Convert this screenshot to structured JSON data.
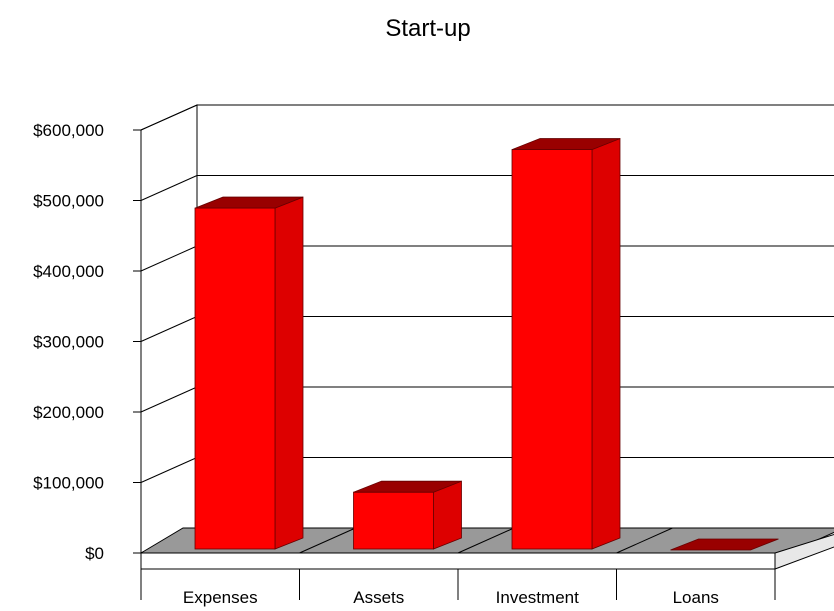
{
  "chart_data": {
    "type": "bar",
    "title": "Start-up",
    "xlabel": "",
    "ylabel": "",
    "categories": [
      "Expenses",
      "Assets",
      "Investment",
      "Loans"
    ],
    "series": [
      {
        "values": [
          485000,
          82000,
          568000,
          0
        ]
      }
    ],
    "ylim": [
      0,
      600000
    ],
    "yticks": [
      {
        "value": 0,
        "label": "$0"
      },
      {
        "value": 100000,
        "label": "$100,000"
      },
      {
        "value": 200000,
        "label": "$200,000"
      },
      {
        "value": 300000,
        "label": "$300,000"
      },
      {
        "value": 400000,
        "label": "$400,000"
      },
      {
        "value": 500000,
        "label": "$500,000"
      },
      {
        "value": 600000,
        "label": "$600,000"
      }
    ],
    "grid": true,
    "legend": "none",
    "three_d": true,
    "colors": {
      "bar_front": "#ff0000",
      "bar_side": "#dd0000",
      "bar_top": "#990000",
      "floor": "#999999",
      "grid": "#000000"
    }
  }
}
